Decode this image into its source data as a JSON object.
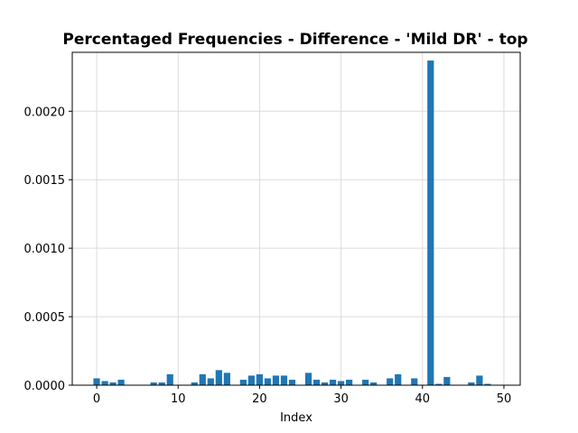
{
  "chart_data": {
    "type": "bar",
    "title": "Percentaged Frequencies - Difference - 'Mild DR' - top",
    "xlabel": "Index",
    "ylabel": "",
    "grid": true,
    "bar_color": "#1f77b4",
    "xlim": [
      -3,
      52
    ],
    "ylim": [
      0,
      0.00243
    ],
    "xticks": [
      0,
      10,
      20,
      30,
      40,
      50
    ],
    "xtick_labels": [
      "0",
      "10",
      "20",
      "30",
      "40",
      "50"
    ],
    "yticks": [
      0,
      0.0005,
      0.001,
      0.0015,
      0.002
    ],
    "ytick_labels": [
      "0.0000",
      "0.0005",
      "0.0010",
      "0.0015",
      "0.0020"
    ],
    "x": [
      0,
      1,
      2,
      3,
      4,
      5,
      6,
      7,
      8,
      9,
      10,
      11,
      12,
      13,
      14,
      15,
      16,
      17,
      18,
      19,
      20,
      21,
      22,
      23,
      24,
      25,
      26,
      27,
      28,
      29,
      30,
      31,
      32,
      33,
      34,
      35,
      36,
      37,
      38,
      39,
      40,
      41,
      42,
      43,
      44,
      45,
      46,
      47,
      48,
      49
    ],
    "values": [
      5e-05,
      3e-05,
      2e-05,
      4e-05,
      0,
      0,
      0,
      2e-05,
      2e-05,
      8e-05,
      0,
      0,
      2e-05,
      8e-05,
      5e-05,
      0.00011,
      9e-05,
      0,
      4e-05,
      7e-05,
      8e-05,
      5e-05,
      7e-05,
      7e-05,
      4e-05,
      0,
      9e-05,
      4e-05,
      2e-05,
      4e-05,
      3e-05,
      4e-05,
      0,
      4e-05,
      2e-05,
      0,
      5e-05,
      8e-05,
      0,
      5e-05,
      0,
      0.00237,
      1e-05,
      6e-05,
      0,
      0,
      2e-05,
      7e-05,
      1e-05,
      0
    ]
  }
}
